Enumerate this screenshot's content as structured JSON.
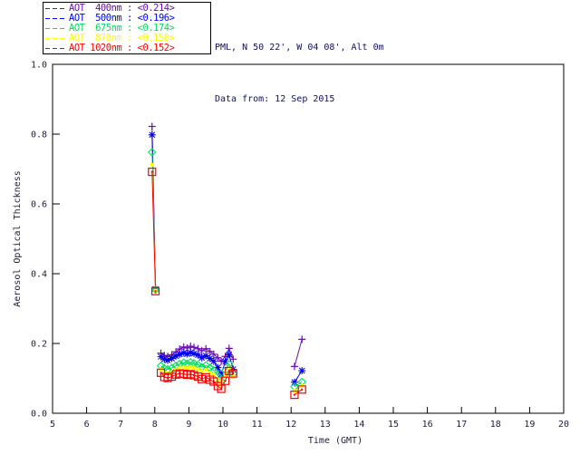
{
  "header": {
    "line1": "PML, N 50 22', W 04 08', Alt 0m",
    "line2": "Data from: 12 Sep 2015"
  },
  "colors": {
    "frame": "#000000",
    "text": "#1c1c3a",
    "header_text": "#10105a",
    "background": "#ffffff"
  },
  "chart_data": {
    "type": "line",
    "title": "",
    "xlabel": "Time (GMT)",
    "ylabel": "Aerosol Optical Thickness",
    "xlim": [
      5,
      20
    ],
    "ylim": [
      0.0,
      1.0
    ],
    "xticks": [
      5,
      6,
      7,
      8,
      9,
      10,
      11,
      12,
      13,
      14,
      15,
      16,
      17,
      18,
      19,
      20
    ],
    "xtick_labels": [
      "5",
      "6",
      "7",
      "8",
      "9",
      "10",
      "11",
      "12",
      "13",
      "14",
      "15",
      "16",
      "17",
      "18",
      "19",
      "20"
    ],
    "yticks": [
      0.0,
      0.2,
      0.4,
      0.6,
      0.8,
      1.0
    ],
    "ytick_labels": [
      "0.0",
      "0.2",
      "0.4",
      "0.6",
      "0.8",
      "1.0"
    ],
    "grid": false,
    "legend_position": "top-left-outside",
    "series": [
      {
        "name": "AOT 400nm",
        "legend_label": "AOT  400nm : <0.214>",
        "mean_label": "<0.214>",
        "color": "#6A0DAD",
        "marker": "plus",
        "segments": [
          [
            [
              7.92,
              0.822
            ],
            [
              8.02,
              0.358
            ]
          ],
          [
            [
              8.18,
              0.172
            ],
            [
              8.28,
              0.166
            ],
            [
              8.38,
              0.163
            ],
            [
              8.5,
              0.168
            ],
            [
              8.62,
              0.176
            ],
            [
              8.73,
              0.184
            ],
            [
              8.85,
              0.19
            ],
            [
              8.95,
              0.187
            ],
            [
              9.05,
              0.192
            ],
            [
              9.15,
              0.189
            ],
            [
              9.27,
              0.185
            ],
            [
              9.38,
              0.179
            ],
            [
              9.5,
              0.185
            ],
            [
              9.62,
              0.177
            ],
            [
              9.73,
              0.169
            ],
            [
              9.85,
              0.159
            ],
            [
              9.95,
              0.149
            ],
            [
              10.07,
              0.163
            ],
            [
              10.18,
              0.186
            ],
            [
              10.3,
              0.155
            ]
          ],
          [
            [
              12.1,
              0.134
            ],
            [
              12.32,
              0.212
            ]
          ]
        ]
      },
      {
        "name": "AOT 500nm",
        "legend_label": "AOT  500nm : <0.196>",
        "mean_label": "<0.196>",
        "color": "#0000EE",
        "marker": "asterisk",
        "segments": [
          [
            [
              7.92,
              0.798
            ],
            [
              8.02,
              0.356
            ]
          ],
          [
            [
              8.18,
              0.162
            ],
            [
              8.28,
              0.155
            ],
            [
              8.38,
              0.152
            ],
            [
              8.5,
              0.157
            ],
            [
              8.62,
              0.164
            ],
            [
              8.73,
              0.169
            ],
            [
              8.85,
              0.173
            ],
            [
              8.95,
              0.17
            ],
            [
              9.05,
              0.174
            ],
            [
              9.15,
              0.171
            ],
            [
              9.27,
              0.167
            ],
            [
              9.38,
              0.159
            ],
            [
              9.5,
              0.165
            ],
            [
              9.62,
              0.157
            ],
            [
              9.73,
              0.149
            ],
            [
              9.85,
              0.131
            ],
            [
              9.95,
              0.112
            ],
            [
              10.07,
              0.148
            ],
            [
              10.18,
              0.168
            ],
            [
              10.3,
              0.126
            ]
          ],
          [
            [
              12.1,
              0.089
            ],
            [
              12.32,
              0.122
            ]
          ]
        ]
      },
      {
        "name": "AOT 675nm",
        "legend_label": "AOT  675nm : <0.174>",
        "mean_label": "<0.174>",
        "color": "#00DC5F",
        "marker": "diamond",
        "segments": [
          [
            [
              7.92,
              0.748
            ],
            [
              8.02,
              0.354
            ]
          ],
          [
            [
              8.18,
              0.136
            ],
            [
              8.28,
              0.129
            ],
            [
              8.38,
              0.126
            ],
            [
              8.5,
              0.13
            ],
            [
              8.62,
              0.136
            ],
            [
              8.73,
              0.141
            ],
            [
              8.85,
              0.145
            ],
            [
              8.95,
              0.142
            ],
            [
              9.05,
              0.146
            ],
            [
              9.15,
              0.143
            ],
            [
              9.27,
              0.139
            ],
            [
              9.38,
              0.132
            ],
            [
              9.5,
              0.137
            ],
            [
              9.62,
              0.13
            ],
            [
              9.73,
              0.123
            ],
            [
              9.85,
              0.108
            ],
            [
              9.95,
              0.092
            ],
            [
              10.07,
              0.122
            ],
            [
              10.18,
              0.141
            ],
            [
              10.3,
              0.113
            ]
          ],
          [
            [
              12.1,
              0.076
            ],
            [
              12.32,
              0.09
            ]
          ]
        ]
      },
      {
        "name": "AOT 870nm",
        "legend_label": "AOT  870nm : <0.158>",
        "mean_label": "<0.158>",
        "color": "#FFFF00",
        "marker": "square-filled",
        "segments": [
          [
            [
              7.92,
              0.712
            ],
            [
              8.02,
              0.352
            ]
          ],
          [
            [
              8.18,
              0.125
            ],
            [
              8.28,
              0.117
            ],
            [
              8.38,
              0.114
            ],
            [
              8.5,
              0.118
            ],
            [
              8.62,
              0.124
            ],
            [
              8.73,
              0.129
            ],
            [
              8.85,
              0.132
            ],
            [
              8.95,
              0.129
            ],
            [
              9.05,
              0.133
            ],
            [
              9.15,
              0.13
            ],
            [
              9.27,
              0.126
            ],
            [
              9.38,
              0.119
            ],
            [
              9.5,
              0.124
            ],
            [
              9.62,
              0.117
            ],
            [
              9.73,
              0.111
            ],
            [
              9.85,
              0.097
            ],
            [
              9.95,
              0.082
            ],
            [
              10.07,
              0.11
            ],
            [
              10.18,
              0.128
            ],
            [
              10.3,
              0.104
            ]
          ],
          [
            [
              12.1,
              0.064
            ],
            [
              12.32,
              0.078
            ]
          ]
        ]
      },
      {
        "name": "AOT 1020nm",
        "legend_label": "AOT 1020nm : <0.152>",
        "mean_label": "<0.152>",
        "color": "#FF0000",
        "marker": "square-open",
        "segments": [
          [
            [
              7.92,
              0.692
            ],
            [
              8.02,
              0.35
            ]
          ],
          [
            [
              8.18,
              0.116
            ],
            [
              8.28,
              0.104
            ],
            [
              8.38,
              0.101
            ],
            [
              8.5,
              0.105
            ],
            [
              8.62,
              0.111
            ],
            [
              8.73,
              0.114
            ],
            [
              8.85,
              0.113
            ],
            [
              8.95,
              0.11
            ],
            [
              9.05,
              0.112
            ],
            [
              9.15,
              0.109
            ],
            [
              9.27,
              0.105
            ],
            [
              9.38,
              0.098
            ],
            [
              9.5,
              0.103
            ],
            [
              9.62,
              0.096
            ],
            [
              9.73,
              0.091
            ],
            [
              9.85,
              0.078
            ],
            [
              9.95,
              0.07
            ],
            [
              10.07,
              0.093
            ],
            [
              10.18,
              0.121
            ],
            [
              10.3,
              0.114
            ]
          ],
          [
            [
              12.1,
              0.053
            ],
            [
              12.32,
              0.068
            ]
          ]
        ]
      }
    ]
  }
}
